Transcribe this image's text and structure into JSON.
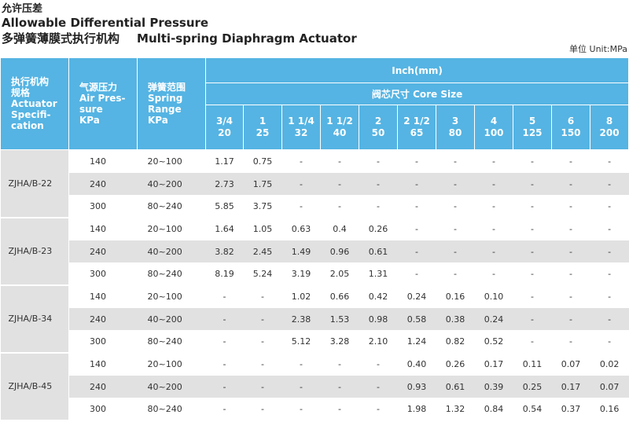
{
  "title_cn": "允许压差",
  "title_en": "Allowable Differential Pressure",
  "subtitle_cn": "多弹簧薄膜式执行机构",
  "subtitle_en": "Multi-spring Diaphragm Actuator",
  "unit": "单位 Unit:MPa",
  "header": {
    "spec_label": [
      "执行机构",
      "规格",
      "Actuator",
      "Specifi-",
      "cation"
    ],
    "air_label": [
      "气源压力",
      "Air Pres-",
      "sure",
      "KPa"
    ],
    "range_label": [
      "弹簧范围",
      "Spring",
      "Range",
      "KPa"
    ],
    "inch_mm": "Inch(mm)",
    "core_size": "阀芯尺寸 Core Size",
    "sizes": [
      {
        "inch": "3/4",
        "mm": "20"
      },
      {
        "inch": "1",
        "mm": "25"
      },
      {
        "inch": "1 1/4",
        "mm": "32"
      },
      {
        "inch": "1 1/2",
        "mm": "40"
      },
      {
        "inch": "2",
        "mm": "50"
      },
      {
        "inch": "2 1/2",
        "mm": "65"
      },
      {
        "inch": "3",
        "mm": "80"
      },
      {
        "inch": "4",
        "mm": "100"
      },
      {
        "inch": "5",
        "mm": "125"
      },
      {
        "inch": "6",
        "mm": "150"
      },
      {
        "inch": "8",
        "mm": "200"
      }
    ]
  },
  "groups": [
    {
      "spec": "ZJHA/B-22",
      "rows": [
        {
          "air": "140",
          "range": "20~100",
          "values": [
            "1.17",
            "0.75",
            "-",
            "-",
            "-",
            "-",
            "-",
            "-",
            "-",
            "-",
            "-"
          ]
        },
        {
          "air": "240",
          "range": "40~200",
          "values": [
            "2.73",
            "1.75",
            "-",
            "-",
            "-",
            "-",
            "-",
            "-",
            "-",
            "-",
            "-"
          ]
        },
        {
          "air": "300",
          "range": "80~240",
          "values": [
            "5.85",
            "3.75",
            "-",
            "-",
            "-",
            "-",
            "-",
            "-",
            "-",
            "-",
            "-"
          ]
        }
      ]
    },
    {
      "spec": "ZJHA/B-23",
      "rows": [
        {
          "air": "140",
          "range": "20~100",
          "values": [
            "1.64",
            "1.05",
            "0.63",
            "0.4",
            "0.26",
            "-",
            "-",
            "-",
            "-",
            "-",
            "-"
          ]
        },
        {
          "air": "240",
          "range": "40~200",
          "values": [
            "3.82",
            "2.45",
            "1.49",
            "0.96",
            "0.61",
            "-",
            "-",
            "-",
            "-",
            "-",
            "-"
          ]
        },
        {
          "air": "300",
          "range": "80~240",
          "values": [
            "8.19",
            "5.24",
            "3.19",
            "2.05",
            "1.31",
            "-",
            "-",
            "-",
            "-",
            "-",
            "-"
          ]
        }
      ]
    },
    {
      "spec": "ZJHA/B-34",
      "rows": [
        {
          "air": "140",
          "range": "20~100",
          "values": [
            "-",
            "-",
            "1.02",
            "0.66",
            "0.42",
            "0.24",
            "0.16",
            "0.10",
            "-",
            "-",
            "-"
          ]
        },
        {
          "air": "240",
          "range": "40~200",
          "values": [
            "-",
            "-",
            "2.38",
            "1.53",
            "0.98",
            "0.58",
            "0.38",
            "0.24",
            "-",
            "-",
            "-"
          ]
        },
        {
          "air": "300",
          "range": "80~240",
          "values": [
            "-",
            "-",
            "5.12",
            "3.28",
            "2.10",
            "1.24",
            "0.82",
            "0.52",
            "-",
            "-",
            "-"
          ]
        }
      ]
    },
    {
      "spec": "ZJHA/B-45",
      "rows": [
        {
          "air": "140",
          "range": "20~100",
          "values": [
            "-",
            "-",
            "-",
            "-",
            "-",
            "0.40",
            "0.26",
            "0.17",
            "0.11",
            "0.07",
            "0.02"
          ]
        },
        {
          "air": "240",
          "range": "40~200",
          "values": [
            "-",
            "-",
            "-",
            "-",
            "-",
            "0.93",
            "0.61",
            "0.39",
            "0.25",
            "0.17",
            "0.07"
          ]
        },
        {
          "air": "300",
          "range": "80~240",
          "values": [
            "-",
            "-",
            "-",
            "-",
            "-",
            "1.98",
            "1.32",
            "0.84",
            "0.54",
            "0.37",
            "0.16"
          ]
        }
      ]
    }
  ]
}
